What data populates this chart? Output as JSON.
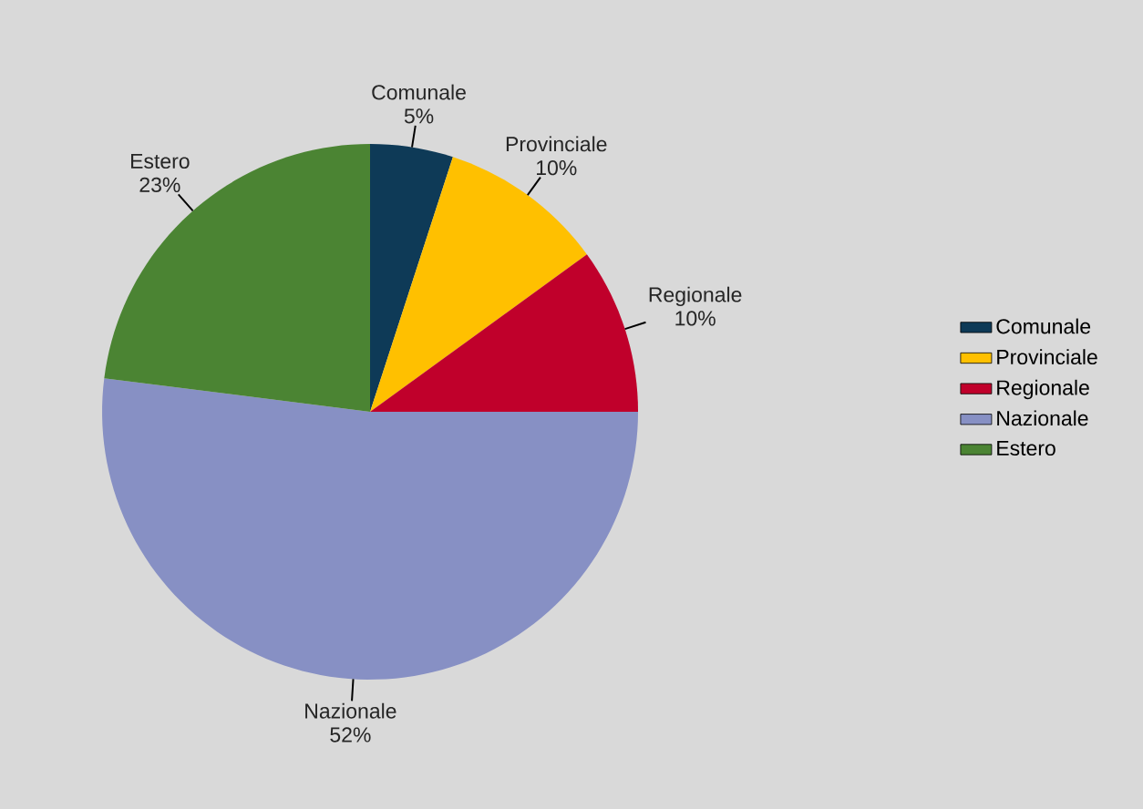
{
  "chart_data": {
    "type": "pie",
    "categories": [
      "Comunale",
      "Provinciale",
      "Regionale",
      "Nazionale",
      "Estero"
    ],
    "values": [
      5,
      10,
      10,
      52,
      23
    ],
    "value_labels": [
      "5%",
      "10%",
      "10%",
      "52%",
      "23%"
    ],
    "colors": [
      "#0e3a57",
      "#ffc000",
      "#c0002b",
      "#8790c4",
      "#4b8433"
    ],
    "legend": "right"
  }
}
